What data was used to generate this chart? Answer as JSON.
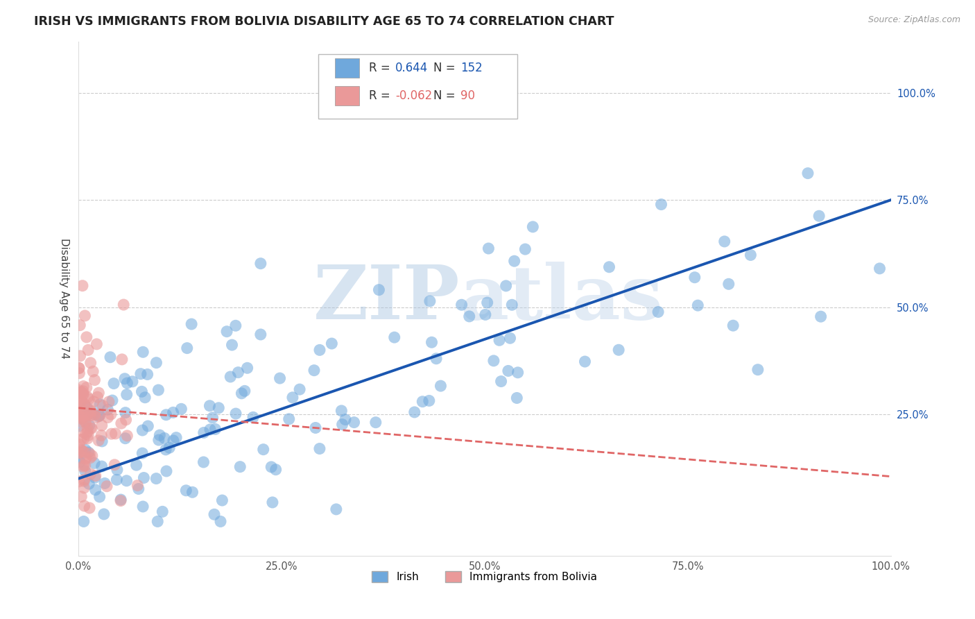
{
  "title": "IRISH VS IMMIGRANTS FROM BOLIVIA DISABILITY AGE 65 TO 74 CORRELATION CHART",
  "source": "Source: ZipAtlas.com",
  "ylabel": "Disability Age 65 to 74",
  "legend_label_1": "Irish",
  "legend_label_2": "Immigrants from Bolivia",
  "R1": 0.644,
  "N1": 152,
  "R2": -0.062,
  "N2": 90,
  "blue_color": "#6fa8dc",
  "pink_color": "#ea9999",
  "blue_line_color": "#1a56b0",
  "pink_line_color": "#e06666",
  "watermark_zip_color": "#a8c4e0",
  "watermark_atlas_color": "#b8cfe8",
  "xlim": [
    0.0,
    1.0
  ],
  "ylim": [
    -0.08,
    1.12
  ],
  "xticks": [
    0.0,
    0.25,
    0.5,
    0.75,
    1.0
  ],
  "xtick_labels": [
    "0.0%",
    "25.0%",
    "50.0%",
    "75.0%",
    "100.0%"
  ],
  "yticks": [
    0.25,
    0.5,
    0.75,
    1.0
  ],
  "ytick_labels": [
    "25.0%",
    "50.0%",
    "75.0%",
    "100.0%"
  ],
  "grid_color": "#cccccc",
  "background_color": "#ffffff",
  "title_fontsize": 12.5,
  "axis_label_fontsize": 11,
  "tick_fontsize": 10.5
}
